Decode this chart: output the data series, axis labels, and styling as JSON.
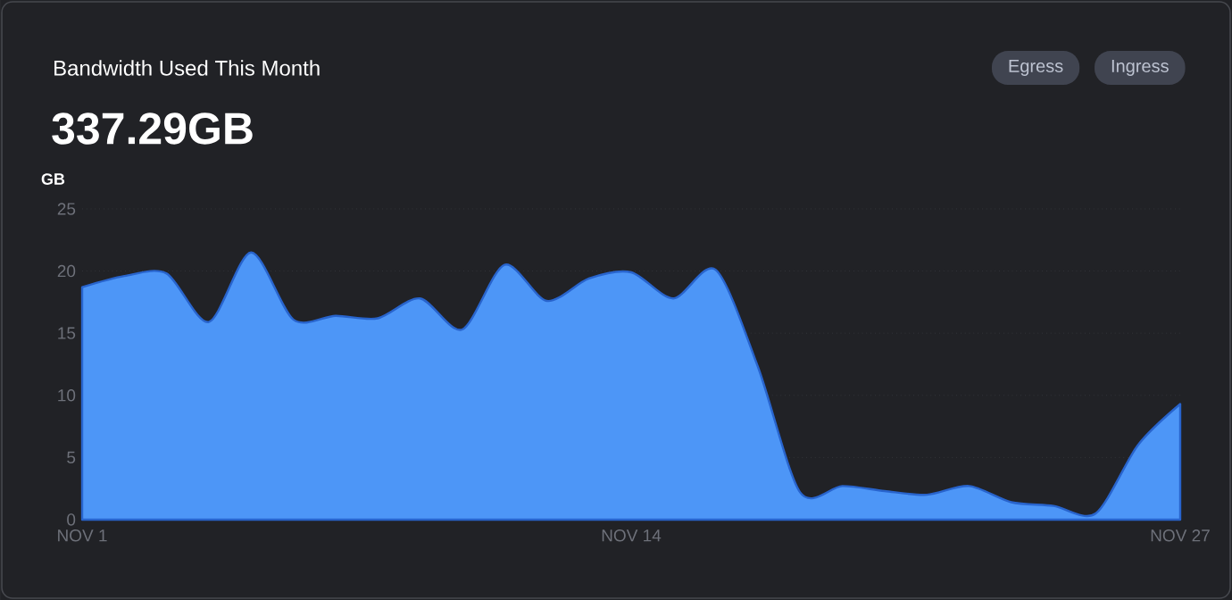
{
  "chart_data": {
    "type": "area",
    "title": "Bandwidth Used This Month",
    "subtitle": "337.29GB",
    "ylabel": "GB",
    "annotations": [
      "Egress",
      "Ingress"
    ],
    "x": [
      "--11-01",
      "--11-02",
      "--11-03",
      "--11-04",
      "--11-05",
      "--11-06",
      "--11-07",
      "--11-08",
      "--11-09",
      "--11-10",
      "--11-11",
      "--11-12",
      "--11-13",
      "--11-14",
      "--11-15",
      "--11-16",
      "--11-17",
      "--11-18",
      "--11-19",
      "--11-20",
      "--11-21",
      "--11-22",
      "--11-23",
      "--11-24",
      "--11-25",
      "--11-26",
      "--11-27"
    ],
    "series": [
      {
        "color": "#4d96f7",
        "values": [
          18.7,
          19.6,
          19.8,
          15.9,
          21.5,
          16.1,
          16.4,
          16.2,
          17.8,
          15.3,
          20.5,
          17.6,
          19.4,
          19.9,
          17.8,
          20.1,
          12.3,
          2.2,
          2.7,
          2.3,
          2.0,
          2.7,
          1.4,
          1.1,
          0.5,
          6.0,
          9.3
        ]
      }
    ],
    "xlim": [
      "--11-01",
      "--11-27"
    ],
    "xticks": [
      {
        "value": "--11-01",
        "label": "NOV 1"
      },
      {
        "value": "--11-14",
        "label": "NOV 14"
      },
      {
        "value": "--11-27",
        "label": "NOV 27"
      }
    ],
    "ylim": [
      0,
      25
    ],
    "yticks": [
      0,
      5,
      10,
      15,
      20,
      25
    ],
    "grid": "y"
  }
}
